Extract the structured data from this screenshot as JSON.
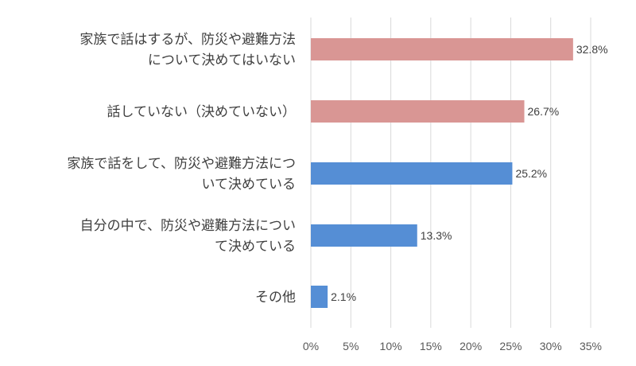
{
  "chart_data": {
    "type": "bar",
    "orientation": "horizontal",
    "categories": [
      [
        "家族で話はするが、防災や避難方法",
        "について決めてはいない"
      ],
      [
        "話していない（決めていない）"
      ],
      [
        "家族で話をして、防災や避難方法につ",
        "いて決めている"
      ],
      [
        "自分の中で、防災や避難方法につい",
        "て決めている"
      ],
      [
        "その他"
      ]
    ],
    "values": [
      32.8,
      26.7,
      25.2,
      13.3,
      2.1
    ],
    "data_labels": [
      "32.8%",
      "26.7%",
      "25.2%",
      "13.3%",
      "2.1%"
    ],
    "bar_colors": [
      "#d99694",
      "#d99694",
      "#558ed5",
      "#558ed5",
      "#558ed5"
    ],
    "xlim": [
      0,
      35
    ],
    "x_ticks": [
      0,
      5,
      10,
      15,
      20,
      25,
      30,
      35
    ],
    "x_tick_labels": [
      "0%",
      "5%",
      "10%",
      "15%",
      "20%",
      "25%",
      "30%",
      "35%"
    ],
    "grid": true,
    "title": "",
    "xlabel": "",
    "ylabel": ""
  }
}
